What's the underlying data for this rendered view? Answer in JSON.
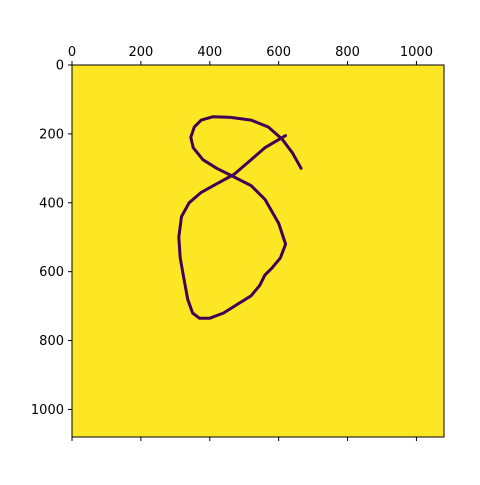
{
  "chart_data": {
    "type": "heatmap",
    "title": "",
    "xlabel": "",
    "ylabel": "",
    "xlim": [
      0,
      1080
    ],
    "ylim": [
      1080,
      0
    ],
    "x_ticks": [
      0,
      200,
      400,
      600,
      800,
      1000
    ],
    "y_ticks": [
      0,
      200,
      400,
      600,
      800,
      1000
    ],
    "x_tick_labels": [
      "0",
      "200",
      "400",
      "600",
      "800",
      "1000"
    ],
    "y_tick_labels": [
      "0",
      "200",
      "400",
      "600",
      "800",
      "1000"
    ],
    "x_tick_position": "top and bottom, labels on top",
    "y_tick_position": "left",
    "grid": false,
    "colormap": "viridis",
    "colors": {
      "background": "#fde725",
      "stroke": "#440154",
      "stroke_mid": "#31688e"
    },
    "strokes": [
      {
        "name": "closing-curve",
        "width": 3,
        "points": [
          [
            620,
            205
          ],
          [
            560,
            240
          ],
          [
            520,
            275
          ],
          [
            470,
            318
          ],
          [
            420,
            345
          ],
          [
            375,
            370
          ],
          [
            340,
            400
          ],
          [
            318,
            440
          ],
          [
            310,
            500
          ],
          [
            314,
            560
          ],
          [
            325,
            620
          ],
          [
            336,
            680
          ],
          [
            350,
            720
          ],
          [
            370,
            735
          ],
          [
            400,
            735
          ],
          [
            440,
            720
          ],
          [
            480,
            695
          ],
          [
            520,
            670
          ],
          [
            545,
            640
          ],
          [
            560,
            610
          ],
          [
            580,
            590
          ],
          [
            605,
            560
          ],
          [
            620,
            520
          ],
          [
            600,
            460
          ],
          [
            560,
            390
          ],
          [
            520,
            350
          ],
          [
            470,
            325
          ],
          [
            420,
            300
          ],
          [
            380,
            275
          ],
          [
            352,
            240
          ],
          [
            345,
            210
          ],
          [
            355,
            180
          ],
          [
            375,
            160
          ],
          [
            410,
            150
          ],
          [
            460,
            152
          ],
          [
            520,
            160
          ],
          [
            570,
            180
          ],
          [
            610,
            215
          ],
          [
            640,
            255
          ],
          [
            665,
            300
          ]
        ]
      }
    ]
  }
}
